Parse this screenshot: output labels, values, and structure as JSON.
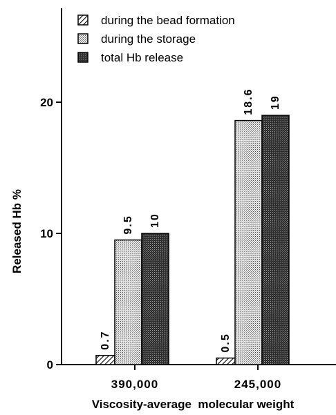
{
  "chart_data": {
    "type": "bar",
    "categories": [
      "390,000",
      "245,000"
    ],
    "series": [
      {
        "name": "during the bead formation",
        "values": [
          0.7,
          0.5
        ],
        "labels": [
          "0.7",
          "0.5"
        ],
        "fill": "hatch"
      },
      {
        "name": "during the storage",
        "values": [
          9.5,
          18.6
        ],
        "labels": [
          "9.5",
          "18.6"
        ],
        "fill": "light-dots"
      },
      {
        "name": "total Hb release",
        "values": [
          10,
          19
        ],
        "labels": [
          "10",
          "19"
        ],
        "fill": "dark-dots"
      }
    ],
    "xlabel": "Viscosity-average  molecular weight",
    "ylabel": "Released Hb %",
    "ylim": [
      0,
      26.5
    ],
    "yticks": [
      0,
      10,
      20
    ],
    "ytick_labels": [
      "0",
      "10",
      "20"
    ],
    "grid": false,
    "legend_position": "top-left"
  },
  "colors": {
    "bar_outline": "#000000",
    "light_fill": "#d4d4d4",
    "dark_fill": "#3a3a3a"
  }
}
